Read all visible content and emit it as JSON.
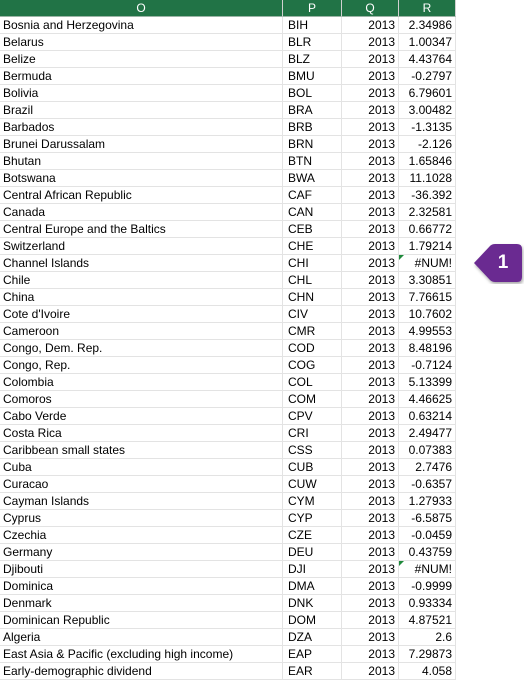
{
  "columns": [
    "O",
    "P",
    "Q",
    "R"
  ],
  "rows": [
    {
      "name": "Bosnia and Herzegovina",
      "code": "BIH",
      "year": "2013",
      "value": "2.34986"
    },
    {
      "name": "Belarus",
      "code": "BLR",
      "year": "2013",
      "value": "1.00347"
    },
    {
      "name": "Belize",
      "code": "BLZ",
      "year": "2013",
      "value": "4.43764"
    },
    {
      "name": "Bermuda",
      "code": "BMU",
      "year": "2013",
      "value": "-0.2797"
    },
    {
      "name": "Bolivia",
      "code": "BOL",
      "year": "2013",
      "value": "6.79601"
    },
    {
      "name": "Brazil",
      "code": "BRA",
      "year": "2013",
      "value": "3.00482"
    },
    {
      "name": "Barbados",
      "code": "BRB",
      "year": "2013",
      "value": "-1.3135"
    },
    {
      "name": "Brunei Darussalam",
      "code": "BRN",
      "year": "2013",
      "value": "-2.126"
    },
    {
      "name": "Bhutan",
      "code": "BTN",
      "year": "2013",
      "value": "1.65846"
    },
    {
      "name": "Botswana",
      "code": "BWA",
      "year": "2013",
      "value": "11.1028"
    },
    {
      "name": "Central African Republic",
      "code": "CAF",
      "year": "2013",
      "value": "-36.392"
    },
    {
      "name": "Canada",
      "code": "CAN",
      "year": "2013",
      "value": "2.32581"
    },
    {
      "name": "Central Europe and the Baltics",
      "code": "CEB",
      "year": "2013",
      "value": "0.66772"
    },
    {
      "name": "Switzerland",
      "code": "CHE",
      "year": "2013",
      "value": "1.79214"
    },
    {
      "name": "Channel Islands",
      "code": "CHI",
      "year": "2013",
      "value": "#NUM!",
      "error": true
    },
    {
      "name": "Chile",
      "code": "CHL",
      "year": "2013",
      "value": "3.30851"
    },
    {
      "name": "China",
      "code": "CHN",
      "year": "2013",
      "value": "7.76615"
    },
    {
      "name": "Cote d'Ivoire",
      "code": "CIV",
      "year": "2013",
      "value": "10.7602"
    },
    {
      "name": "Cameroon",
      "code": "CMR",
      "year": "2013",
      "value": "4.99553"
    },
    {
      "name": "Congo, Dem. Rep.",
      "code": "COD",
      "year": "2013",
      "value": "8.48196"
    },
    {
      "name": "Congo, Rep.",
      "code": "COG",
      "year": "2013",
      "value": "-0.7124"
    },
    {
      "name": "Colombia",
      "code": "COL",
      "year": "2013",
      "value": "5.13399"
    },
    {
      "name": "Comoros",
      "code": "COM",
      "year": "2013",
      "value": "4.46625"
    },
    {
      "name": "Cabo Verde",
      "code": "CPV",
      "year": "2013",
      "value": "0.63214"
    },
    {
      "name": "Costa Rica",
      "code": "CRI",
      "year": "2013",
      "value": "2.49477"
    },
    {
      "name": "Caribbean small states",
      "code": "CSS",
      "year": "2013",
      "value": "0.07383"
    },
    {
      "name": "Cuba",
      "code": "CUB",
      "year": "2013",
      "value": "2.7476"
    },
    {
      "name": "Curacao",
      "code": "CUW",
      "year": "2013",
      "value": "-0.6357"
    },
    {
      "name": "Cayman Islands",
      "code": "CYM",
      "year": "2013",
      "value": "1.27933"
    },
    {
      "name": "Cyprus",
      "code": "CYP",
      "year": "2013",
      "value": "-6.5875"
    },
    {
      "name": "Czechia",
      "code": "CZE",
      "year": "2013",
      "value": "-0.0459"
    },
    {
      "name": "Germany",
      "code": "DEU",
      "year": "2013",
      "value": "0.43759"
    },
    {
      "name": "Djibouti",
      "code": "DJI",
      "year": "2013",
      "value": "#NUM!",
      "error": true
    },
    {
      "name": "Dominica",
      "code": "DMA",
      "year": "2013",
      "value": "-0.9999"
    },
    {
      "name": "Denmark",
      "code": "DNK",
      "year": "2013",
      "value": "0.93334"
    },
    {
      "name": "Dominican Republic",
      "code": "DOM",
      "year": "2013",
      "value": "4.87521"
    },
    {
      "name": "Algeria",
      "code": "DZA",
      "year": "2013",
      "value": "2.6"
    },
    {
      "name": "East Asia & Pacific (excluding high income)",
      "code": "EAP",
      "year": "2013",
      "value": "7.29873"
    },
    {
      "name": "Early-demographic dividend",
      "code": "EAR",
      "year": "2013",
      "value": "4.058"
    }
  ],
  "callout": {
    "number": "1",
    "color": "#6a2c91"
  },
  "colors": {
    "header": "#217346",
    "error_triangle": "#1e8a3b"
  }
}
